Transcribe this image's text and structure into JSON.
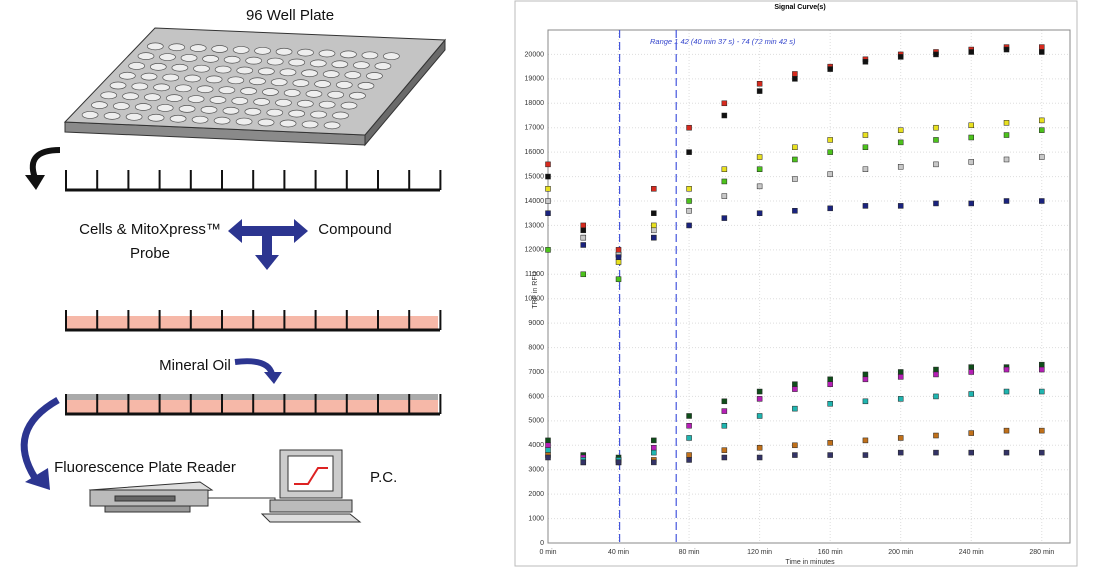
{
  "diagram": {
    "plate_title": "96 Well Plate",
    "cells_line1": "Cells & MitoXpress™",
    "cells_line2": "Probe",
    "compound": "Compound",
    "oil": "Mineral Oil",
    "reader": "Fluorescence Plate Reader",
    "pc": "P.C."
  },
  "chart_data": {
    "type": "scatter",
    "title": "Signal Curve(s)",
    "x_label": "Time in minutes",
    "y_label": "TRF in RFU",
    "annotation": "Range 1 42 (40 min 37 s) - 74 (72 min 42 s)",
    "range_lines": [
      40.6,
      72.7
    ],
    "xlim": [
      0,
      296
    ],
    "ylim": [
      0,
      21000
    ],
    "grid": true,
    "xticks": [
      {
        "value": 0,
        "label": "0 min"
      },
      {
        "value": 40,
        "label": "40 min"
      },
      {
        "value": 80,
        "label": "80 min"
      },
      {
        "value": 120,
        "label": "120 min"
      },
      {
        "value": 160,
        "label": "160 min"
      },
      {
        "value": 200,
        "label": "200 min"
      },
      {
        "value": 240,
        "label": "240 min"
      },
      {
        "value": 280,
        "label": "280 min"
      }
    ],
    "yticks": [
      0,
      1000,
      2000,
      3000,
      4000,
      5000,
      6000,
      7000,
      8000,
      9000,
      10000,
      11000,
      12000,
      13000,
      14000,
      15000,
      16000,
      17000,
      18000,
      19000,
      20000
    ],
    "x": [
      0,
      20,
      40,
      60,
      80,
      100,
      120,
      140,
      160,
      180,
      200,
      220,
      240,
      260,
      280
    ],
    "series": [
      {
        "color": "#d62a1e",
        "values": [
          15500,
          13000,
          12000,
          14500,
          17000,
          18000,
          18800,
          19200,
          19500,
          19800,
          20000,
          20100,
          20200,
          20300,
          20300
        ]
      },
      {
        "color": "#111111",
        "values": [
          15000,
          12800,
          11800,
          13500,
          16000,
          17500,
          18500,
          19000,
          19400,
          19700,
          19900,
          20000,
          20100,
          20200,
          20100
        ]
      },
      {
        "color": "#e8e020",
        "values": [
          14500,
          12500,
          11500,
          13000,
          14500,
          15300,
          15800,
          16200,
          16500,
          16700,
          16900,
          17000,
          17100,
          17200,
          17300
        ]
      },
      {
        "color": "#4cc21c",
        "values": [
          12000,
          11000,
          10800,
          12500,
          14000,
          14800,
          15300,
          15700,
          16000,
          16200,
          16400,
          16500,
          16600,
          16700,
          16900
        ]
      },
      {
        "color": "#c8c8c8",
        "values": [
          14000,
          12500,
          11800,
          12800,
          13600,
          14200,
          14600,
          14900,
          15100,
          15300,
          15400,
          15500,
          15600,
          15700,
          15800
        ]
      },
      {
        "color": "#1a237e",
        "values": [
          13500,
          12200,
          11700,
          12500,
          13000,
          13300,
          13500,
          13600,
          13700,
          13800,
          13800,
          13900,
          13900,
          14000,
          14000
        ]
      },
      {
        "color": "#0f4d1a",
        "values": [
          4200,
          3600,
          3500,
          4200,
          5200,
          5800,
          6200,
          6500,
          6700,
          6900,
          7000,
          7100,
          7200,
          7200,
          7300
        ]
      },
      {
        "color": "#b51fb5",
        "values": [
          4000,
          3500,
          3400,
          3900,
          4800,
          5400,
          5900,
          6300,
          6500,
          6700,
          6800,
          6900,
          7000,
          7100,
          7100
        ]
      },
      {
        "color": "#1fb5b0",
        "values": [
          3800,
          3400,
          3400,
          3700,
          4300,
          4800,
          5200,
          5500,
          5700,
          5800,
          5900,
          6000,
          6100,
          6200,
          6200
        ]
      },
      {
        "color": "#c0701a",
        "values": [
          3600,
          3300,
          3300,
          3400,
          3600,
          3800,
          3900,
          4000,
          4100,
          4200,
          4300,
          4400,
          4500,
          4600,
          4600
        ]
      },
      {
        "color": "#333366",
        "values": [
          3500,
          3300,
          3300,
          3300,
          3400,
          3500,
          3500,
          3600,
          3600,
          3600,
          3700,
          3700,
          3700,
          3700,
          3700
        ]
      }
    ]
  }
}
